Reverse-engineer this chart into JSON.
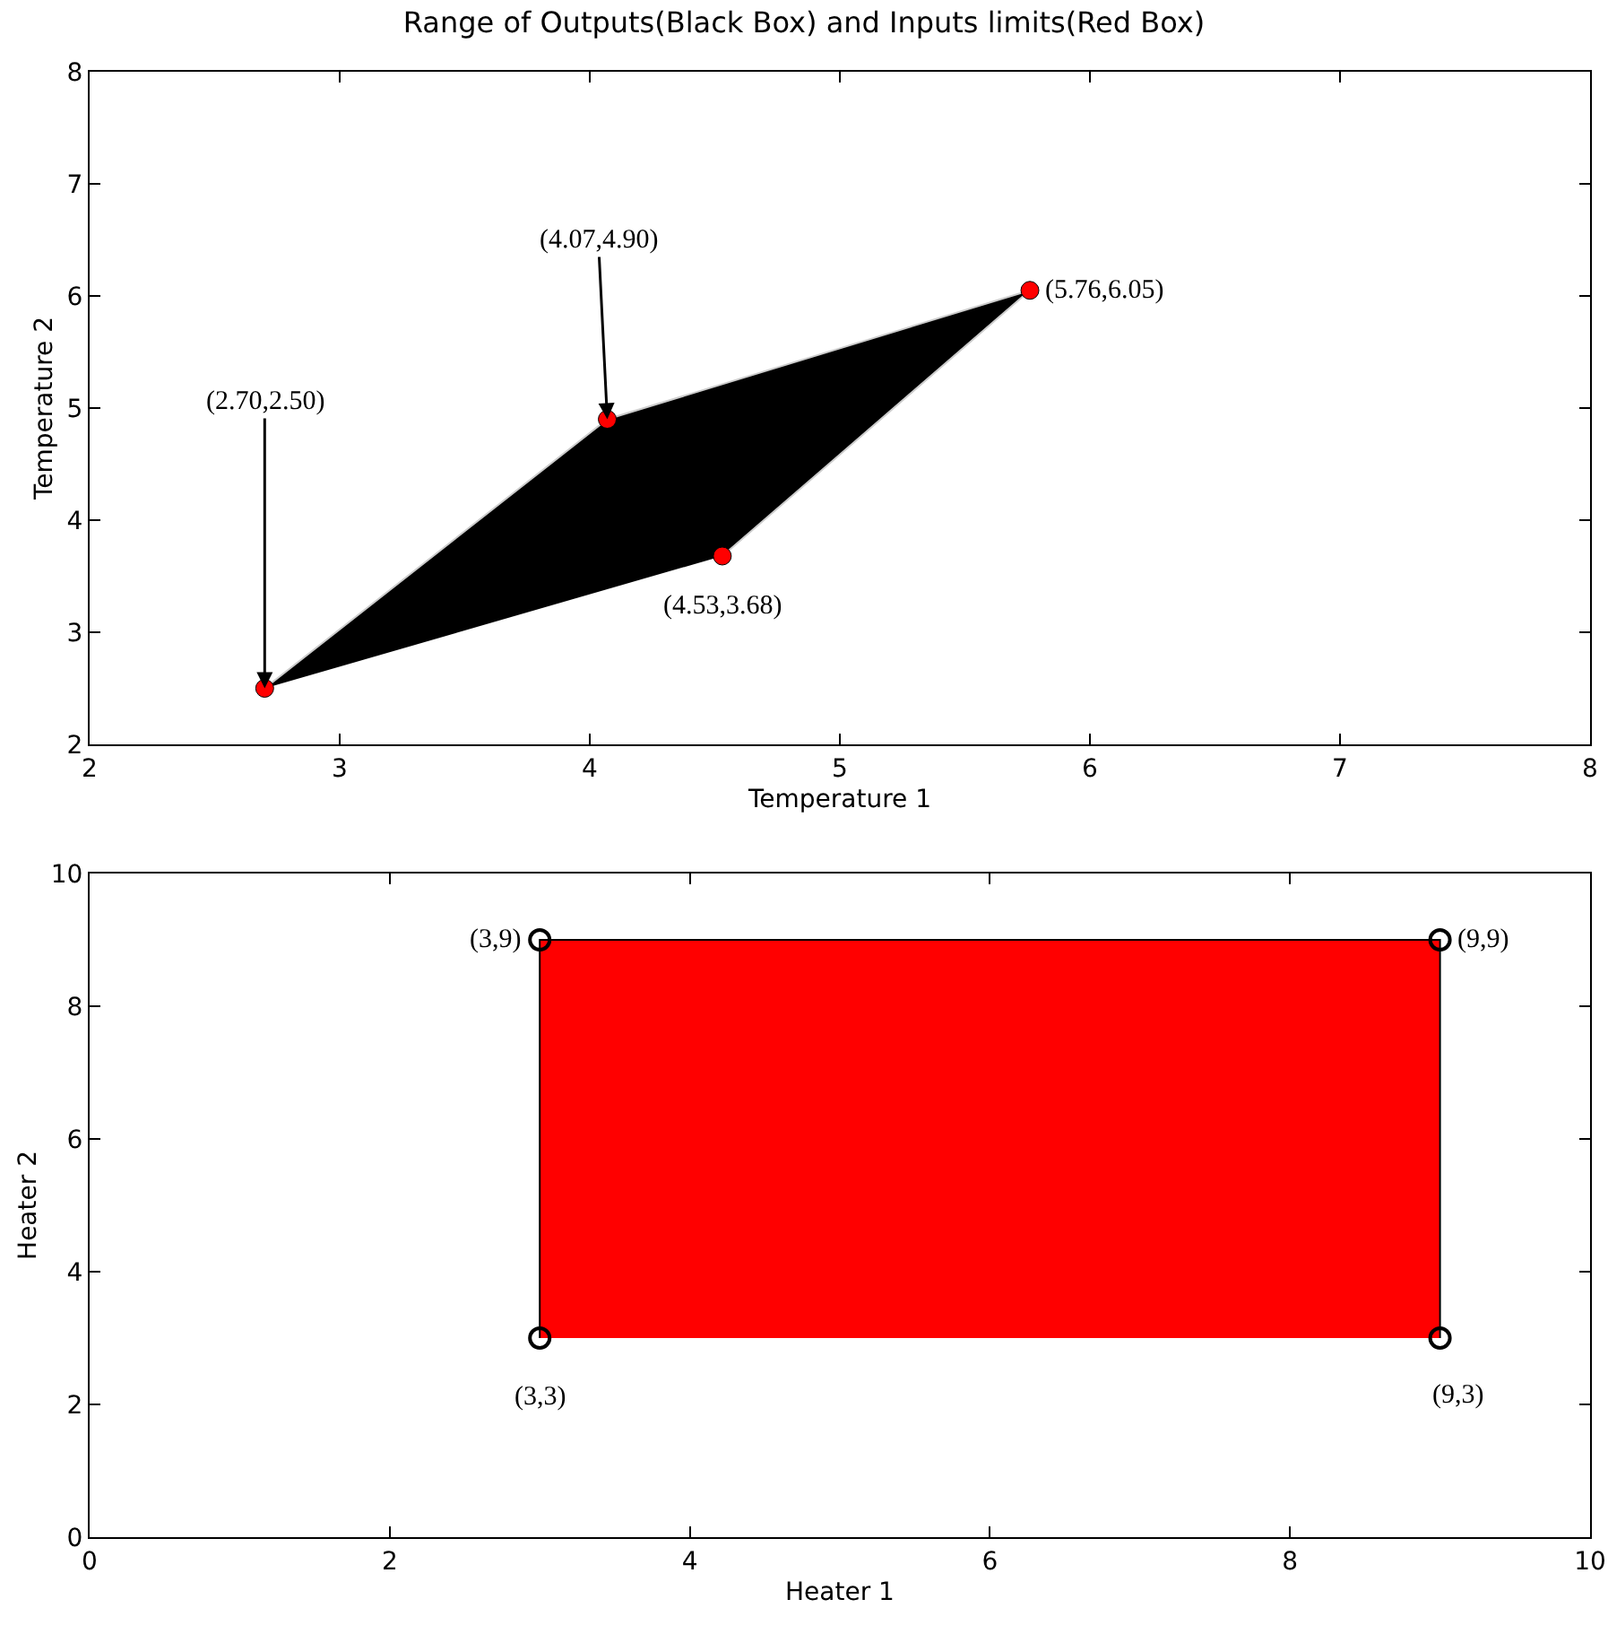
{
  "chart_data": [
    {
      "type": "scatter",
      "title": "Range of Outputs(Black Box) and Inputs limits(Red Box)",
      "xlabel": "Temperature 1",
      "ylabel": "Temperature 2",
      "xlim": [
        2,
        8
      ],
      "xticks": [
        2,
        3,
        4,
        5,
        6,
        7,
        8
      ],
      "ylim": [
        2,
        8
      ],
      "yticks": [
        2,
        3,
        4,
        5,
        6,
        7,
        8
      ],
      "grid": false,
      "series": [
        {
          "type": "area",
          "color": "#000000",
          "x": [
            2.7,
            4.07,
            5.76,
            4.53
          ],
          "values": [
            2.5,
            4.9,
            6.05,
            3.68
          ]
        },
        {
          "marker": "circle",
          "color": "#ff0000",
          "x": [
            2.7,
            4.07,
            5.76,
            4.53
          ],
          "values": [
            2.5,
            4.9,
            6.05,
            3.68
          ]
        }
      ],
      "annotations": [
        {
          "text": "(2.70,2.50)",
          "x": 2.7,
          "y": 2.5
        },
        {
          "text": "(4.07,4.90)",
          "x": 4.07,
          "y": 4.9
        },
        {
          "text": "(5.76,6.05)",
          "x": 5.76,
          "y": 6.05
        },
        {
          "text": "(4.53,3.68)",
          "x": 4.53,
          "y": 3.68
        }
      ]
    },
    {
      "type": "scatter",
      "xlabel": "Heater 1",
      "ylabel": "Heater 2",
      "xlim": [
        0,
        10
      ],
      "xticks": [
        0,
        2,
        4,
        6,
        8,
        10
      ],
      "ylim": [
        0,
        10
      ],
      "yticks": [
        0,
        2,
        4,
        6,
        8,
        10
      ],
      "grid": false,
      "series": [
        {
          "type": "area",
          "color": "#ff0000",
          "x": [
            3,
            3,
            9,
            9
          ],
          "values": [
            3,
            9,
            9,
            3
          ]
        },
        {
          "marker": "circle",
          "color": "#000000",
          "x": [
            3,
            3,
            9,
            9
          ],
          "values": [
            3,
            9,
            9,
            3
          ]
        }
      ],
      "annotations": [
        {
          "text": "(3,3)",
          "x": 3,
          "y": 3
        },
        {
          "text": "(3,9)",
          "x": 3,
          "y": 9
        },
        {
          "text": "(9,9)",
          "x": 9,
          "y": 9
        },
        {
          "text": "(9,3)",
          "x": 9,
          "y": 3
        }
      ]
    }
  ]
}
